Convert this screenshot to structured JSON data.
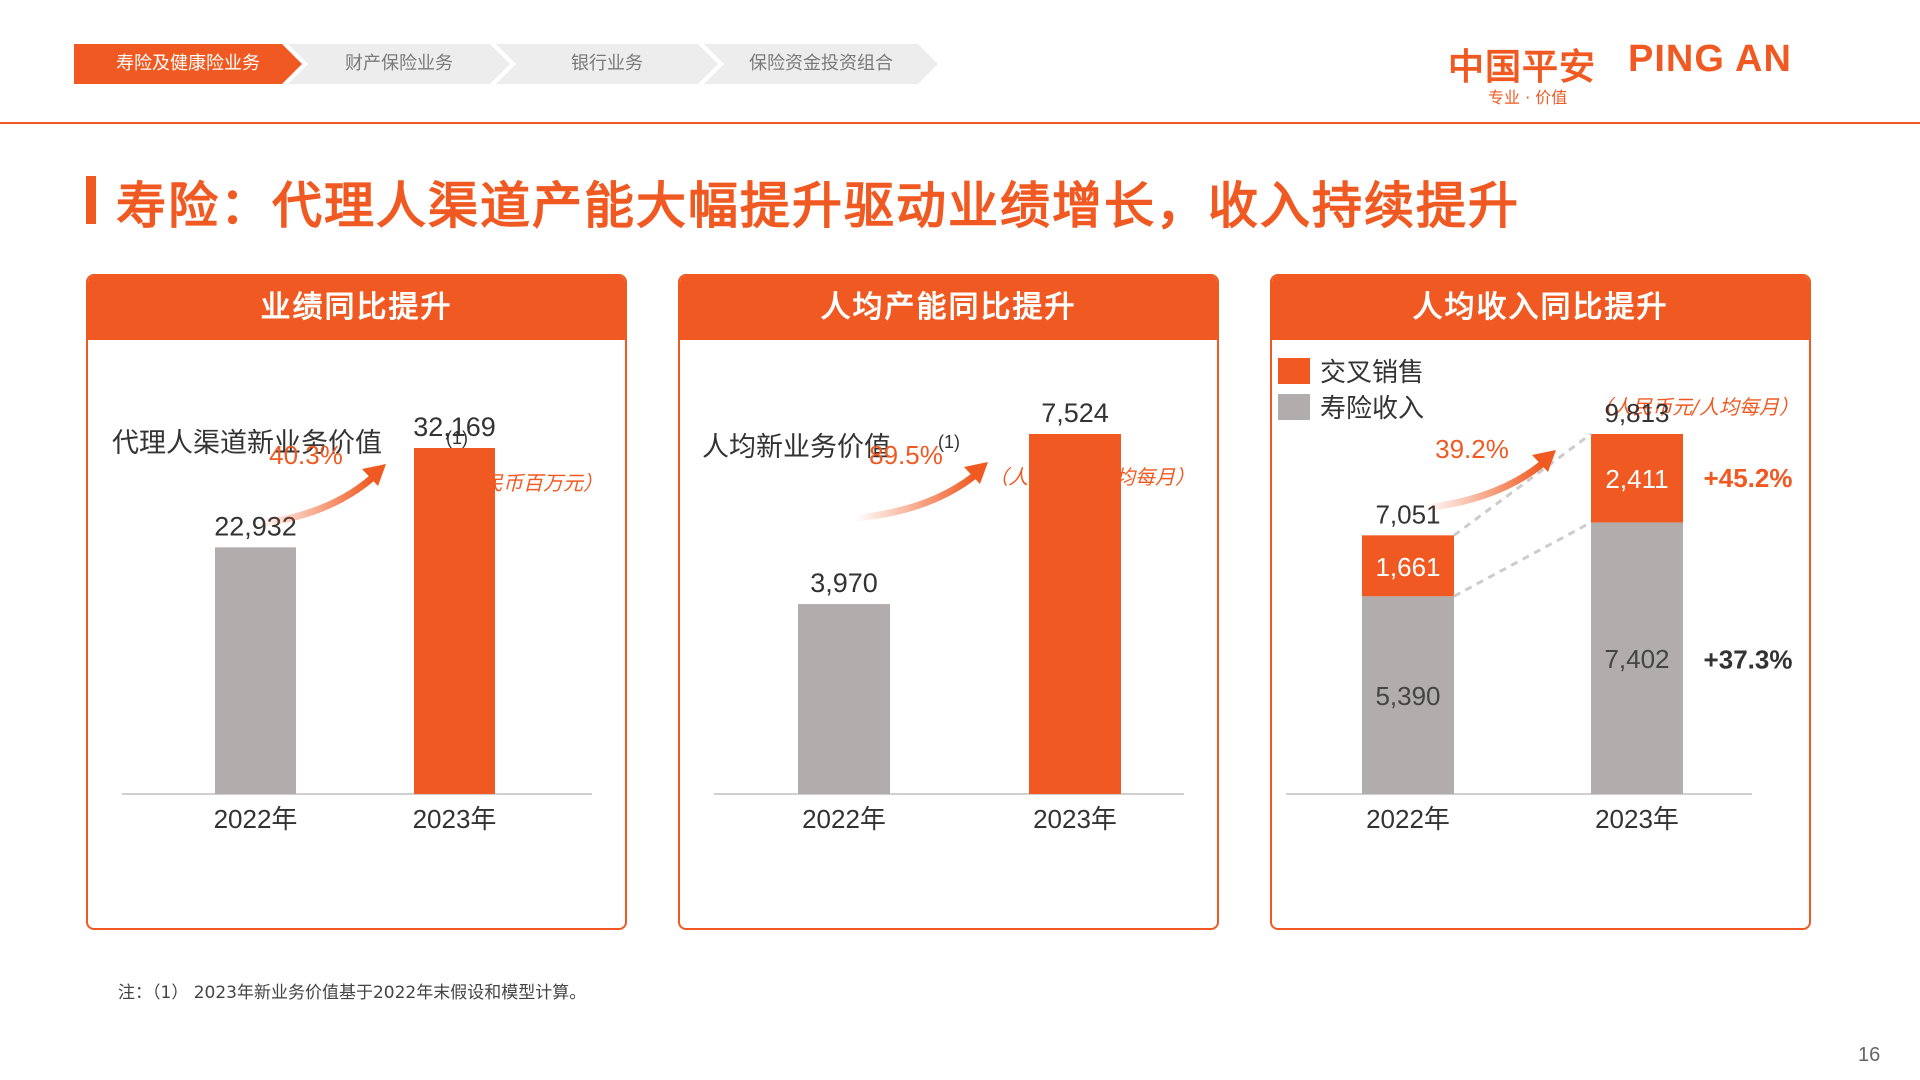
{
  "nav": {
    "tabs": [
      {
        "label": "寿险及健康险业务",
        "active": true
      },
      {
        "label": "财产保险业务",
        "active": false
      },
      {
        "label": "银行业务",
        "active": false
      },
      {
        "label": "保险资金投资组合",
        "active": false
      }
    ]
  },
  "logo": {
    "cn": "中国平安",
    "en": "PING AN",
    "tagline": "专业 · 价值"
  },
  "title": "寿险：代理人渠道产能大幅提升驱动业绩增长，收入持续提升",
  "colors": {
    "accent": "#f05a22",
    "gray": "#b1adac",
    "arrow": "#f05a22"
  },
  "chart_data": [
    {
      "type": "bar",
      "header": "业绩同比提升",
      "title": "代理人渠道新业务价值",
      "title_note": "(1)",
      "unit": "（人民币百万元）",
      "categories": [
        "2022年",
        "2023年"
      ],
      "values": [
        22932,
        32169
      ],
      "value_labels": [
        "22,932",
        "32,169"
      ],
      "growth": "40.3%"
    },
    {
      "type": "bar",
      "header": "人均产能同比提升",
      "title": "人均新业务价值",
      "title_note": "(1)",
      "unit": "（人民币元/人均每月）",
      "categories": [
        "2022年",
        "2023年"
      ],
      "values": [
        3970,
        7524
      ],
      "value_labels": [
        "3,970",
        "7,524"
      ],
      "growth": "89.5%"
    },
    {
      "type": "bar",
      "stacked": true,
      "header": "人均收入同比提升",
      "unit": "（人民币元/人均每月）",
      "categories": [
        "2022年",
        "2023年"
      ],
      "series": [
        {
          "name": "寿险收入",
          "values": [
            5390,
            7402
          ],
          "value_labels": [
            "5,390",
            "7,402"
          ],
          "change": "+37.3%"
        },
        {
          "name": "交叉销售",
          "values": [
            1661,
            2411
          ],
          "value_labels": [
            "1,661",
            "2,411"
          ],
          "change": "+45.2%"
        }
      ],
      "totals": [
        7051,
        9813
      ],
      "total_labels": [
        "7,051",
        "9,813"
      ],
      "growth": "39.2%"
    }
  ],
  "footnote": "注：（1） 2023年新业务价值基于2022年末假设和模型计算。",
  "page_number": "16"
}
